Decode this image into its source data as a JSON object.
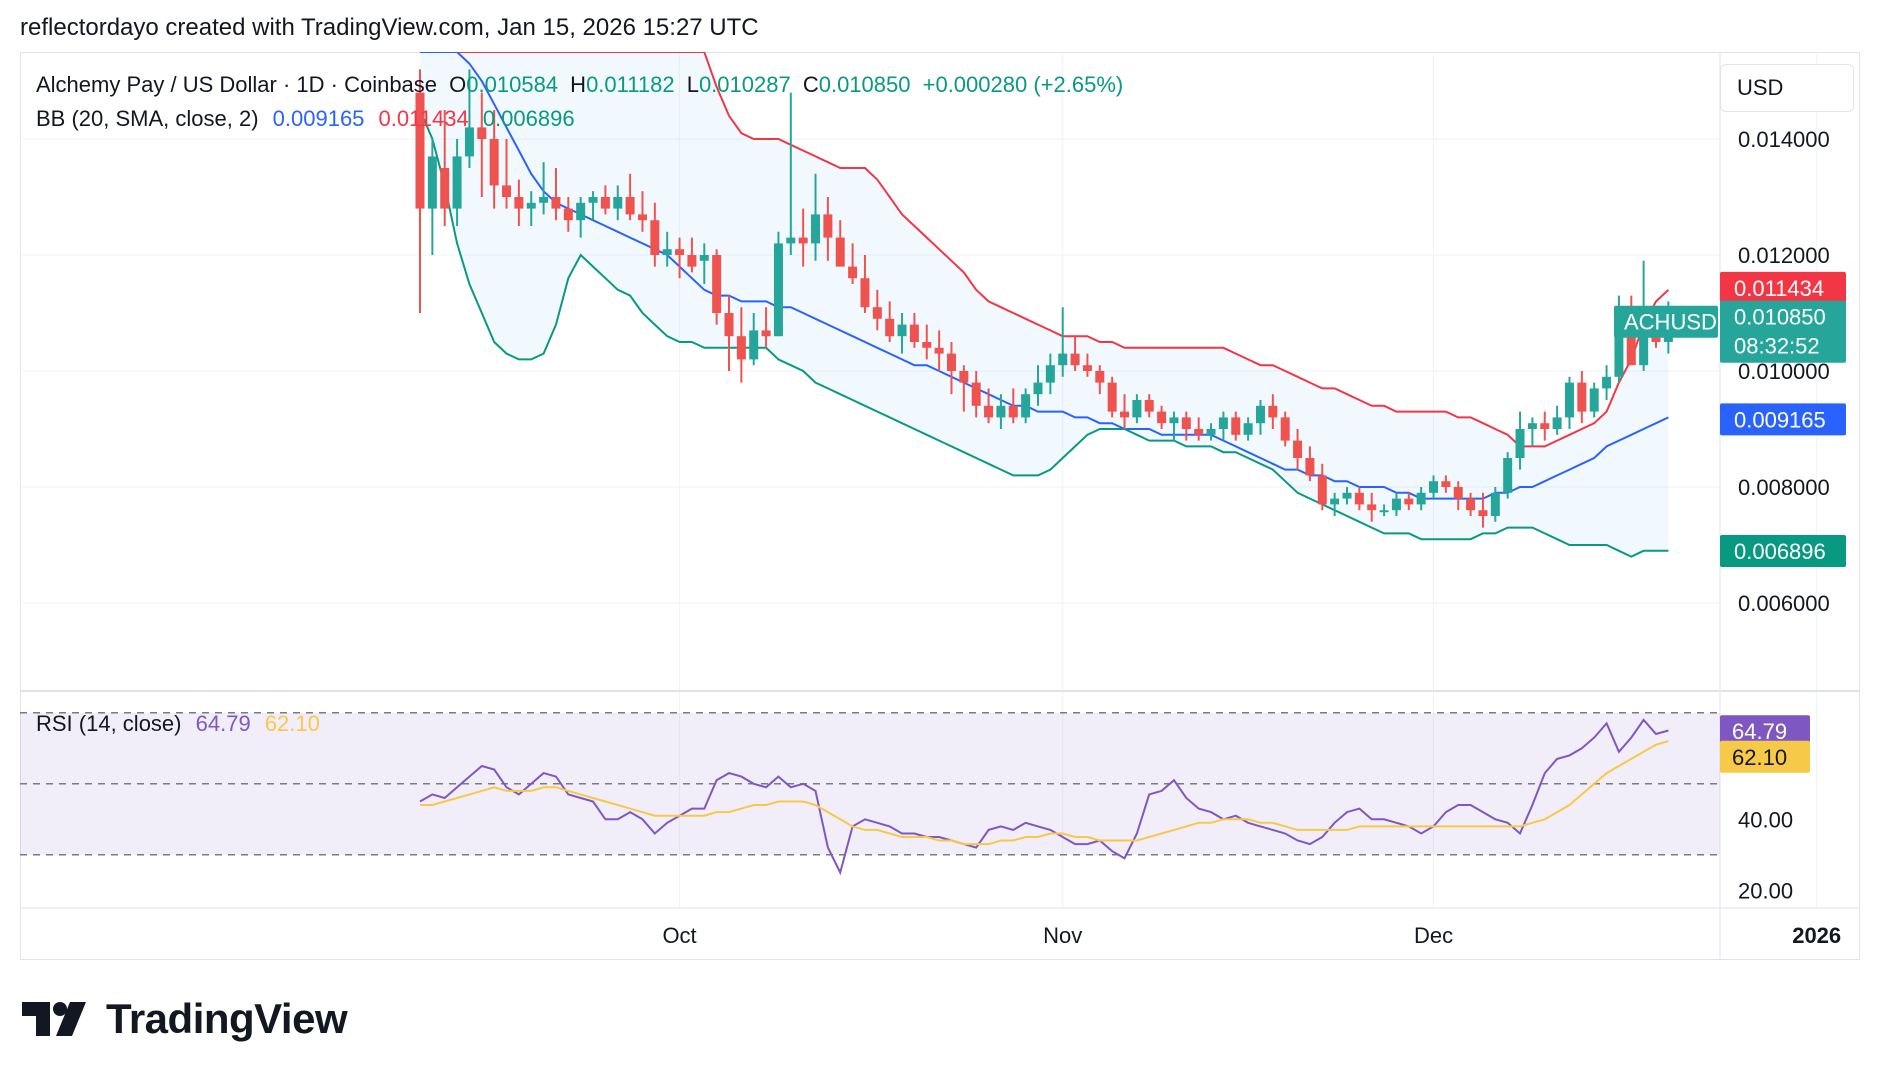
{
  "header": {
    "attribution": "reflectordayo created with TradingView.com, Jan 15, 2026 15:27 UTC"
  },
  "legend": {
    "symbol": "Alchemy Pay / US Dollar · 1D · Coinbase",
    "open_label": "O",
    "open": "0.010584",
    "high_label": "H",
    "high": "0.011182",
    "low_label": "L",
    "low": "0.010287",
    "close_label": "C",
    "close": "0.010850",
    "change": "+0.000280 (+2.65%)",
    "bb_label": "BB (20, SMA, close, 2)",
    "bb_basis": "0.009165",
    "bb_upper": "0.011434",
    "bb_lower": "0.006896",
    "rsi_label": "RSI (14, close)",
    "rsi_value": "64.79",
    "rsi_ma": "62.10"
  },
  "currency": "USD",
  "price_scale": {
    "ticks": [
      "0.014000",
      "0.012000",
      "0.010000",
      "0.008000",
      "0.006000"
    ],
    "upper_badge": "0.011434",
    "last_price_badge": "0.010850",
    "countdown": "08:32:52",
    "symbol_badge": "ACHUSD",
    "basis_badge": "0.009165",
    "lower_badge": "0.006896"
  },
  "rsi_scale": {
    "ticks": [
      "40.00",
      "20.00"
    ],
    "rsi_badge": "64.79",
    "ma_badge": "62.10"
  },
  "time_axis": {
    "labels": [
      "Oct",
      "Nov",
      "Dec",
      "2026"
    ]
  },
  "colors": {
    "up": "#26a69a",
    "down": "#ef5350",
    "bb_upper": "#f23645",
    "bb_basis": "#2962ff",
    "bb_lower": "#089981",
    "bb_fill": "#2196f3",
    "rsi": "#7e57c2",
    "rsi_ma": "#f7c948",
    "rsi_band": "#7e57c2"
  },
  "brand": "TradingView",
  "chart_data": {
    "type": "candlestick",
    "title": "Alchemy Pay / US Dollar · 1D · Coinbase",
    "ylim": [
      0.0045,
      0.0155
    ],
    "start_date": "2025-09-10",
    "candles": [
      [
        0.0148,
        0.0152,
        0.011,
        0.0128
      ],
      [
        0.0128,
        0.014,
        0.012,
        0.0137
      ],
      [
        0.0135,
        0.0145,
        0.0125,
        0.0128
      ],
      [
        0.0128,
        0.014,
        0.0125,
        0.0137
      ],
      [
        0.0137,
        0.0152,
        0.0135,
        0.0142
      ],
      [
        0.0142,
        0.0148,
        0.013,
        0.014
      ],
      [
        0.014,
        0.0145,
        0.0128,
        0.0132
      ],
      [
        0.0132,
        0.014,
        0.0128,
        0.013
      ],
      [
        0.013,
        0.0133,
        0.0125,
        0.0128
      ],
      [
        0.0128,
        0.0131,
        0.0125,
        0.0129
      ],
      [
        0.0129,
        0.0136,
        0.0127,
        0.013
      ],
      [
        0.013,
        0.0135,
        0.0126,
        0.0128
      ],
      [
        0.0128,
        0.013,
        0.0124,
        0.0126
      ],
      [
        0.0126,
        0.013,
        0.0123,
        0.0129
      ],
      [
        0.0129,
        0.0131,
        0.0126,
        0.013
      ],
      [
        0.013,
        0.0132,
        0.0127,
        0.0128
      ],
      [
        0.0128,
        0.0132,
        0.0126,
        0.013
      ],
      [
        0.013,
        0.0134,
        0.0126,
        0.0127
      ],
      [
        0.0127,
        0.0131,
        0.0124,
        0.0126
      ],
      [
        0.0126,
        0.0129,
        0.0118,
        0.012
      ],
      [
        0.012,
        0.0124,
        0.0118,
        0.0121
      ],
      [
        0.0121,
        0.0123,
        0.0116,
        0.012
      ],
      [
        0.012,
        0.0123,
        0.0117,
        0.0118
      ],
      [
        0.0119,
        0.0122,
        0.0115,
        0.012
      ],
      [
        0.012,
        0.0121,
        0.0108,
        0.011
      ],
      [
        0.011,
        0.0113,
        0.01,
        0.0106
      ],
      [
        0.0106,
        0.0111,
        0.0098,
        0.0102
      ],
      [
        0.0102,
        0.011,
        0.0101,
        0.0107
      ],
      [
        0.0107,
        0.0111,
        0.0104,
        0.0106
      ],
      [
        0.0106,
        0.0124,
        0.0106,
        0.0122
      ],
      [
        0.0122,
        0.0148,
        0.012,
        0.0123
      ],
      [
        0.0123,
        0.0128,
        0.0118,
        0.0122
      ],
      [
        0.0122,
        0.0134,
        0.0119,
        0.0127
      ],
      [
        0.0127,
        0.013,
        0.0119,
        0.0123
      ],
      [
        0.0123,
        0.0126,
        0.0118,
        0.0118
      ],
      [
        0.0118,
        0.0122,
        0.0115,
        0.0116
      ],
      [
        0.0116,
        0.012,
        0.011,
        0.0111
      ],
      [
        0.0111,
        0.0114,
        0.0107,
        0.0109
      ],
      [
        0.0109,
        0.0112,
        0.0105,
        0.0106
      ],
      [
        0.0106,
        0.011,
        0.0103,
        0.0108
      ],
      [
        0.0108,
        0.011,
        0.0104,
        0.0105
      ],
      [
        0.0105,
        0.0108,
        0.0102,
        0.0104
      ],
      [
        0.0104,
        0.0107,
        0.01,
        0.0103
      ],
      [
        0.0103,
        0.0105,
        0.0096,
        0.01
      ],
      [
        0.01,
        0.0101,
        0.0093,
        0.0098
      ],
      [
        0.0098,
        0.01,
        0.0092,
        0.0094
      ],
      [
        0.0094,
        0.0097,
        0.0091,
        0.0092
      ],
      [
        0.0092,
        0.0096,
        0.009,
        0.0094
      ],
      [
        0.0094,
        0.0097,
        0.0091,
        0.0092
      ],
      [
        0.0092,
        0.0097,
        0.0091,
        0.0096
      ],
      [
        0.0096,
        0.0101,
        0.0094,
        0.0098
      ],
      [
        0.0098,
        0.0103,
        0.0096,
        0.0101
      ],
      [
        0.0101,
        0.0111,
        0.0099,
        0.0103
      ],
      [
        0.0103,
        0.0106,
        0.01,
        0.0101
      ],
      [
        0.0101,
        0.0103,
        0.0099,
        0.01
      ],
      [
        0.01,
        0.0101,
        0.0096,
        0.0098
      ],
      [
        0.0098,
        0.0099,
        0.0092,
        0.0093
      ],
      [
        0.0093,
        0.0096,
        0.009,
        0.0092
      ],
      [
        0.0092,
        0.0096,
        0.0091,
        0.0095
      ],
      [
        0.0095,
        0.0096,
        0.0092,
        0.0093
      ],
      [
        0.0093,
        0.0094,
        0.009,
        0.0091
      ],
      [
        0.0091,
        0.0093,
        0.0088,
        0.0092
      ],
      [
        0.0092,
        0.0093,
        0.0088,
        0.009
      ],
      [
        0.009,
        0.0092,
        0.0088,
        0.0089
      ],
      [
        0.0089,
        0.0091,
        0.0088,
        0.009
      ],
      [
        0.009,
        0.0093,
        0.0088,
        0.0092
      ],
      [
        0.0092,
        0.0093,
        0.0088,
        0.0089
      ],
      [
        0.0089,
        0.0092,
        0.0088,
        0.0091
      ],
      [
        0.0091,
        0.0095,
        0.0089,
        0.0094
      ],
      [
        0.0094,
        0.0096,
        0.009,
        0.0092
      ],
      [
        0.0092,
        0.0093,
        0.0087,
        0.0088
      ],
      [
        0.0088,
        0.009,
        0.0083,
        0.0085
      ],
      [
        0.0085,
        0.0087,
        0.0081,
        0.0082
      ],
      [
        0.0082,
        0.0084,
        0.0076,
        0.0077
      ],
      [
        0.0077,
        0.0079,
        0.0075,
        0.0078
      ],
      [
        0.0078,
        0.008,
        0.0077,
        0.0079
      ],
      [
        0.0079,
        0.008,
        0.0076,
        0.0077
      ],
      [
        0.0077,
        0.0079,
        0.0074,
        0.0076
      ],
      [
        0.0076,
        0.0077,
        0.0075,
        0.0076
      ],
      [
        0.0076,
        0.0079,
        0.0075,
        0.0078
      ],
      [
        0.0078,
        0.0079,
        0.0076,
        0.0077
      ],
      [
        0.0077,
        0.008,
        0.0076,
        0.0079
      ],
      [
        0.0079,
        0.0082,
        0.0078,
        0.0081
      ],
      [
        0.0081,
        0.0082,
        0.0079,
        0.008
      ],
      [
        0.008,
        0.0081,
        0.0076,
        0.0078
      ],
      [
        0.0078,
        0.0079,
        0.0075,
        0.0076
      ],
      [
        0.0076,
        0.0079,
        0.0073,
        0.0075
      ],
      [
        0.0075,
        0.008,
        0.0074,
        0.0079
      ],
      [
        0.0079,
        0.0086,
        0.0078,
        0.0085
      ],
      [
        0.0085,
        0.0093,
        0.0083,
        0.009
      ],
      [
        0.009,
        0.0092,
        0.0087,
        0.0091
      ],
      [
        0.0091,
        0.0093,
        0.0088,
        0.009
      ],
      [
        0.009,
        0.0094,
        0.0089,
        0.0092
      ],
      [
        0.0092,
        0.0099,
        0.009,
        0.0098
      ],
      [
        0.0098,
        0.01,
        0.0091,
        0.0093
      ],
      [
        0.0093,
        0.0098,
        0.0092,
        0.0097
      ],
      [
        0.0097,
        0.0101,
        0.0095,
        0.0099
      ],
      [
        0.0099,
        0.0113,
        0.0098,
        0.0108
      ],
      [
        0.0108,
        0.0113,
        0.0101,
        0.0101
      ],
      [
        0.0101,
        0.0119,
        0.01,
        0.0107
      ],
      [
        0.0107,
        0.0111,
        0.0104,
        0.0105
      ],
      [
        0.0105,
        0.0112,
        0.0103,
        0.0108
      ]
    ],
    "bb_upper": [
      0.0155,
      0.0155,
      0.0155,
      0.0155,
      0.0155,
      0.0155,
      0.0155,
      0.0155,
      0.0155,
      0.0155,
      0.0155,
      0.0155,
      0.0155,
      0.0155,
      0.0155,
      0.0155,
      0.0155,
      0.0155,
      0.0155,
      0.0155,
      0.0155,
      0.0155,
      0.0155,
      0.0155,
      0.0149,
      0.0144,
      0.0141,
      0.014,
      0.014,
      0.014,
      0.0139,
      0.0138,
      0.0137,
      0.0136,
      0.0135,
      0.0135,
      0.0135,
      0.0133,
      0.013,
      0.0127,
      0.0125,
      0.0123,
      0.0121,
      0.0119,
      0.0117,
      0.0114,
      0.0112,
      0.0111,
      0.011,
      0.0109,
      0.0108,
      0.0107,
      0.0106,
      0.0106,
      0.0106,
      0.0105,
      0.0105,
      0.0104,
      0.0104,
      0.0104,
      0.0104,
      0.0104,
      0.0104,
      0.0104,
      0.0104,
      0.0104,
      0.0103,
      0.0102,
      0.0101,
      0.0101,
      0.01,
      0.0099,
      0.0098,
      0.0097,
      0.0097,
      0.0096,
      0.0095,
      0.0094,
      0.0094,
      0.0093,
      0.0093,
      0.0093,
      0.0093,
      0.0093,
      0.0092,
      0.0092,
      0.0091,
      0.009,
      0.0089,
      0.0087,
      0.0087,
      0.0087,
      0.0088,
      0.0089,
      0.009,
      0.0091,
      0.0093,
      0.0098,
      0.0102,
      0.0108,
      0.0112,
      0.0114
    ],
    "bb_basis": [
      0.0155,
      0.0155,
      0.0155,
      0.0155,
      0.0153,
      0.015,
      0.0146,
      0.0142,
      0.0138,
      0.0134,
      0.0131,
      0.0129,
      0.0128,
      0.0127,
      0.0126,
      0.0125,
      0.0124,
      0.0123,
      0.0122,
      0.0121,
      0.012,
      0.0118,
      0.0116,
      0.0114,
      0.0113,
      0.0113,
      0.0112,
      0.0112,
      0.0112,
      0.0111,
      0.0111,
      0.011,
      0.0109,
      0.0108,
      0.0107,
      0.0106,
      0.0105,
      0.0104,
      0.0103,
      0.0102,
      0.0101,
      0.0101,
      0.01,
      0.0099,
      0.0098,
      0.0097,
      0.0096,
      0.0095,
      0.0094,
      0.0094,
      0.0093,
      0.0093,
      0.0093,
      0.0092,
      0.0092,
      0.0091,
      0.0091,
      0.009,
      0.009,
      0.009,
      0.0089,
      0.0089,
      0.0089,
      0.0089,
      0.0089,
      0.0088,
      0.0087,
      0.0086,
      0.0085,
      0.0084,
      0.0083,
      0.0083,
      0.0082,
      0.0082,
      0.0081,
      0.0081,
      0.008,
      0.008,
      0.008,
      0.0079,
      0.0079,
      0.0078,
      0.0078,
      0.0078,
      0.0078,
      0.0078,
      0.0078,
      0.0079,
      0.0079,
      0.008,
      0.008,
      0.0081,
      0.0082,
      0.0083,
      0.0084,
      0.0085,
      0.0087,
      0.0088,
      0.0089,
      0.009,
      0.0091,
      0.0092
    ],
    "bb_lower": [
      0.0145,
      0.014,
      0.0132,
      0.0122,
      0.0115,
      0.011,
      0.0105,
      0.0103,
      0.0102,
      0.0102,
      0.0103,
      0.0108,
      0.0116,
      0.012,
      0.0118,
      0.0116,
      0.0114,
      0.0113,
      0.011,
      0.0108,
      0.0106,
      0.0105,
      0.0105,
      0.0104,
      0.0104,
      0.0104,
      0.0104,
      0.0104,
      0.0104,
      0.0102,
      0.0101,
      0.01,
      0.0098,
      0.0097,
      0.0096,
      0.0095,
      0.0094,
      0.0093,
      0.0092,
      0.0091,
      0.009,
      0.0089,
      0.0088,
      0.0087,
      0.0086,
      0.0085,
      0.0084,
      0.0083,
      0.0082,
      0.0082,
      0.0082,
      0.0083,
      0.0085,
      0.0087,
      0.0089,
      0.009,
      0.009,
      0.009,
      0.0089,
      0.0088,
      0.0088,
      0.0088,
      0.0087,
      0.0087,
      0.0087,
      0.0086,
      0.0086,
      0.0085,
      0.0084,
      0.0083,
      0.0081,
      0.0079,
      0.0078,
      0.0077,
      0.0076,
      0.0075,
      0.0074,
      0.0073,
      0.0072,
      0.0072,
      0.0072,
      0.0071,
      0.0071,
      0.0071,
      0.0071,
      0.0071,
      0.0072,
      0.0072,
      0.0073,
      0.0073,
      0.0073,
      0.0072,
      0.0071,
      0.007,
      0.007,
      0.007,
      0.007,
      0.0069,
      0.0068,
      0.0069,
      0.0069,
      0.0069
    ],
    "rsi": [
      45,
      47,
      46,
      49,
      52,
      55,
      54,
      49,
      47,
      50,
      53,
      52,
      47,
      46,
      45,
      40,
      40,
      42,
      40,
      36,
      39,
      41,
      43,
      43,
      51,
      53,
      52,
      50,
      49,
      52,
      49,
      50,
      48,
      32,
      25,
      38,
      40,
      39,
      38,
      36,
      36,
      35,
      35,
      34,
      33,
      32,
      37,
      38,
      37,
      39,
      38,
      37,
      35,
      33,
      33,
      34,
      31,
      29,
      36,
      47,
      48,
      51,
      46,
      43,
      42,
      40,
      41,
      39,
      38,
      37,
      36,
      34,
      33,
      35,
      39,
      42,
      43,
      40,
      40,
      39,
      38,
      36,
      38,
      42,
      44,
      44,
      42,
      40,
      39,
      36,
      44,
      53,
      57,
      58,
      60,
      63,
      67,
      59,
      63,
      68,
      64,
      65
    ],
    "rsi_ma": [
      44,
      44,
      45,
      46,
      47,
      48,
      49,
      48,
      48,
      48,
      49,
      49,
      48,
      47,
      46,
      45,
      44,
      43,
      42,
      41,
      41,
      41,
      41,
      41,
      42,
      42,
      43,
      44,
      44,
      45,
      45,
      45,
      44,
      42,
      40,
      38,
      37,
      37,
      36,
      35,
      35,
      35,
      34,
      34,
      33,
      33,
      33,
      34,
      34,
      35,
      35,
      36,
      36,
      35,
      35,
      34,
      34,
      34,
      34,
      35,
      36,
      37,
      38,
      39,
      39,
      40,
      40,
      40,
      39,
      39,
      38,
      37,
      37,
      37,
      37,
      37,
      38,
      38,
      38,
      38,
      38,
      38,
      38,
      38,
      38,
      38,
      38,
      38,
      38,
      38,
      39,
      40,
      42,
      44,
      47,
      50,
      53,
      55,
      57,
      59,
      61,
      62
    ],
    "price_ticks": [
      0.014,
      0.012,
      0.01,
      0.008,
      0.006
    ],
    "rsi_ticks": [
      40,
      20
    ],
    "rsi_bands": [
      70,
      50,
      30
    ],
    "rsi_range": [
      15,
      75
    ],
    "x_labels": [
      {
        "label": "Oct",
        "date": "2025-10-01"
      },
      {
        "label": "Nov",
        "date": "2025-11-01"
      },
      {
        "label": "Dec",
        "date": "2025-12-01"
      },
      {
        "label": "2026",
        "date": "2026-01-01"
      }
    ]
  }
}
